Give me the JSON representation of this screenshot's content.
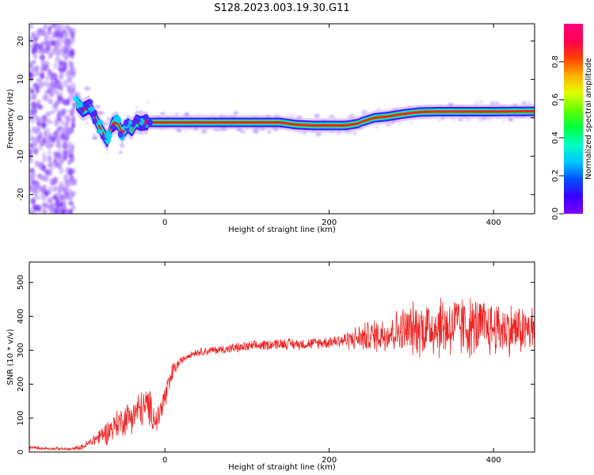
{
  "figure": {
    "title": "S128.2023.003.19.30.G11"
  },
  "chart_data": [
    {
      "type": "heatmap",
      "title": "S128.2023.003.19.30.G11",
      "xlabel": "Height of straight line (km)",
      "ylabel": "Frequency (Hz)",
      "xlim": [
        -165,
        450
      ],
      "ylim": [
        -25,
        24.5
      ],
      "xticks": [
        0,
        200,
        400
      ],
      "yticks": [
        -20,
        -10,
        0,
        10,
        20
      ],
      "colorbar": {
        "label": "Normalized spectral amplitude",
        "range": [
          0,
          1
        ],
        "ticks": [
          "0.0",
          "0.2",
          "0.4",
          "0.6",
          "0.8"
        ],
        "tick_values": [
          0,
          0.2,
          0.4,
          0.6,
          0.8
        ],
        "colormap": [
          "#7b00ff",
          "#3a00ff",
          "#0050ff",
          "#00c8ff",
          "#00ffc0",
          "#00ff40",
          "#60ff00",
          "#e0ff00",
          "#ffb000",
          "#ff4000",
          "#ff0050",
          "#ff0080"
        ]
      },
      "ridge": {
        "x": [
          -108,
          -100,
          -92,
          -85,
          -78,
          -70,
          -65,
          -58,
          -52,
          -45,
          -40,
          -35,
          -30,
          -20,
          0,
          50,
          100,
          140,
          160,
          180,
          200,
          220,
          235,
          240,
          255,
          270,
          290,
          310,
          330,
          360,
          400,
          450
        ],
        "y": [
          4,
          2,
          3,
          0,
          -3,
          -6,
          -2,
          -1,
          -4,
          -2,
          -3,
          -1,
          -1.5,
          -1.2,
          -1.2,
          -1.2,
          -1.2,
          -1.2,
          -1.8,
          -2,
          -2,
          -2,
          -1.5,
          -1,
          0,
          0.3,
          1,
          1.5,
          1.6,
          1.6,
          1.6,
          1.7
        ]
      },
      "noise_region_x": [
        -165,
        -110
      ]
    },
    {
      "type": "line",
      "xlabel": "Height of straight line (km)",
      "ylabel": "SNR (10 * v/v)",
      "xlim": [
        -165,
        450
      ],
      "ylim": [
        0,
        560
      ],
      "xticks": [
        0,
        200,
        400
      ],
      "yticks": [
        0,
        100,
        200,
        300,
        400,
        500
      ],
      "series": [
        {
          "color": "#ee2222",
          "x": [
            -165,
            -150,
            -130,
            -115,
            -100,
            -90,
            -80,
            -70,
            -60,
            -50,
            -40,
            -30,
            -20,
            -10,
            0,
            5,
            10,
            15,
            20,
            30,
            40,
            60,
            80,
            100,
            120,
            140,
            160,
            180,
            200,
            210,
            220,
            240,
            260,
            280,
            300,
            320,
            340,
            360,
            380,
            400,
            420,
            440,
            450
          ],
          "mean": [
            14,
            11,
            10,
            8,
            15,
            30,
            45,
            60,
            80,
            95,
            110,
            125,
            135,
            90,
            160,
            195,
            240,
            255,
            270,
            288,
            295,
            300,
            305,
            310,
            315,
            320,
            318,
            320,
            325,
            328,
            330,
            338,
            345,
            355,
            362,
            368,
            372,
            370,
            368,
            365,
            362,
            360,
            360
          ],
          "noise": [
            4,
            4,
            4,
            4,
            8,
            15,
            25,
            35,
            40,
            45,
            50,
            55,
            55,
            40,
            45,
            40,
            25,
            15,
            10,
            10,
            12,
            12,
            14,
            15,
            15,
            16,
            16,
            16,
            18,
            20,
            25,
            40,
            50,
            60,
            75,
            85,
            95,
            90,
            85,
            80,
            75,
            70,
            70
          ]
        }
      ]
    }
  ]
}
